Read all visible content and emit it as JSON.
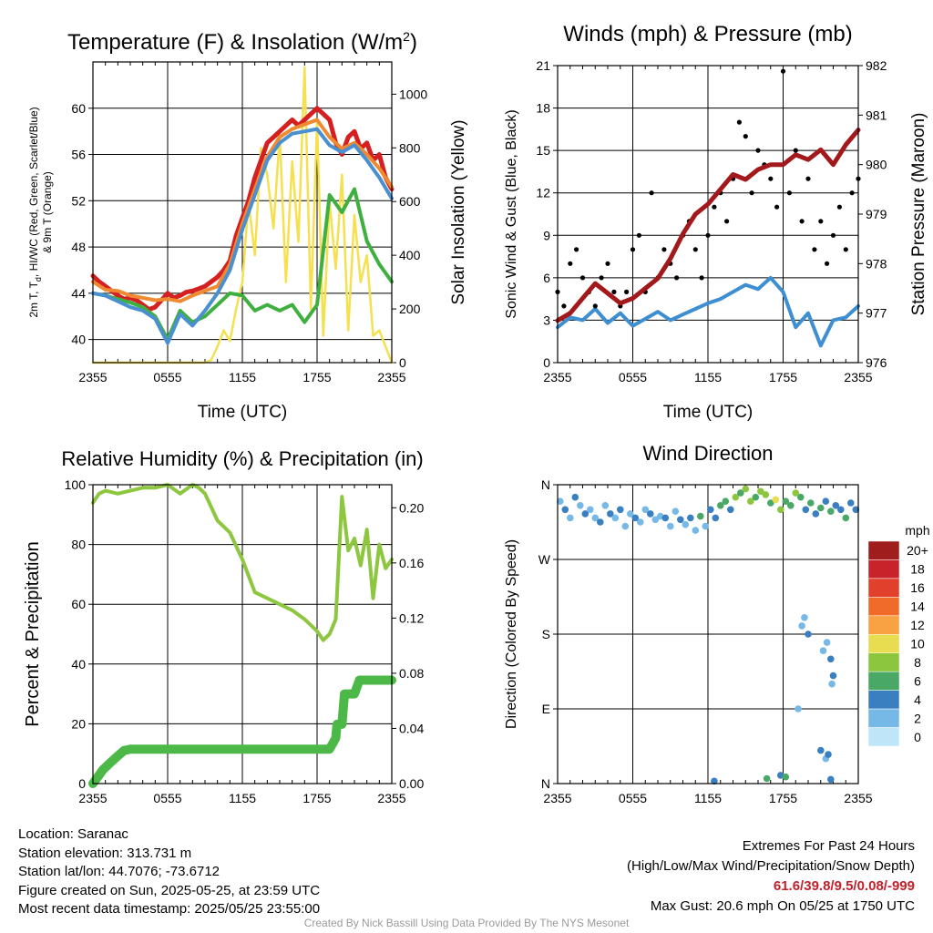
{
  "chart_data": [
    {
      "type": "line",
      "title": "Temperature (F) & Insolation (W/m",
      "title_sup": "2",
      "title_close": ")",
      "xlabel": "Time (UTC)",
      "ylabel_lines": [
        "2m T, T",
        "d",
        ", HI/WC (Red, Green, Scarlet/Blue)",
        "& 9m T (Orange)"
      ],
      "ylabel_right": "Solar Insolation (Yellow)",
      "x_ticks": [
        "2355",
        "0555",
        "1155",
        "1755",
        "2355"
      ],
      "ylim": [
        38,
        64
      ],
      "y_ticks": [
        "40",
        "44",
        "48",
        "52",
        "56",
        "60"
      ],
      "y2lim": [
        0,
        1120
      ],
      "y2_ticks": [
        "0",
        "200",
        "400",
        "600",
        "800",
        "1000"
      ],
      "series": [
        {
          "name": "2m T",
          "color": "#d42020",
          "x": [
            0,
            0.5,
            1,
            1.5,
            2,
            2.5,
            3,
            3.5,
            4,
            4.5,
            5,
            5.5,
            6,
            6.5,
            7,
            7.5,
            8,
            8.5,
            9,
            9.5,
            10,
            10.5,
            11,
            11.5,
            12,
            12.5,
            13,
            13.5,
            14,
            14.5,
            15,
            15.5,
            16,
            16.5,
            17,
            17.5,
            18,
            18.5,
            19,
            19.5,
            20,
            20.5,
            21,
            21.5,
            22,
            22.5,
            23,
            23.5,
            24
          ],
          "y": [
            45.5,
            45.0,
            44.6,
            44.2,
            43.8,
            43.5,
            43.6,
            43.4,
            43.0,
            42.6,
            42.8,
            43.4,
            44.0,
            43.6,
            43.8,
            44.1,
            44.2,
            44.4,
            44.6,
            45.0,
            45.4,
            46.0,
            46.8,
            49.0,
            50.5,
            52.0,
            54.0,
            55.5,
            57.0,
            57.5,
            58.0,
            58.5,
            59.0,
            58.5,
            59.0,
            59.5,
            60.0,
            59.5,
            59.0,
            57.0,
            56.0,
            57.5,
            58.0,
            56.5,
            57.0,
            55.5,
            56.0,
            54.0,
            53.0
          ]
        },
        {
          "name": "9m T",
          "color": "#f08a30",
          "x": [
            0,
            1,
            2,
            3,
            4,
            5,
            6,
            7,
            8,
            9,
            10,
            11,
            12,
            13,
            14,
            15,
            16,
            17,
            18,
            19,
            20,
            21,
            22,
            23,
            24
          ],
          "y": [
            45.0,
            44.3,
            44.2,
            43.8,
            43.6,
            43.4,
            43.5,
            43.3,
            43.8,
            44.2,
            44.6,
            46.5,
            50.0,
            53.0,
            55.8,
            57.5,
            58.2,
            58.6,
            59.0,
            57.5,
            56.5,
            57.0,
            56.0,
            54.8,
            53.2
          ]
        },
        {
          "name": "T_d",
          "color": "#3fb03f",
          "x": [
            0,
            1,
            2,
            3,
            4,
            5,
            6,
            7,
            8,
            9,
            10,
            11,
            12,
            13,
            14,
            15,
            16,
            17,
            18,
            19,
            20,
            21,
            22,
            23,
            24
          ],
          "y": [
            44.0,
            43.8,
            43.5,
            43.2,
            42.8,
            42.0,
            40.0,
            42.5,
            41.5,
            42.0,
            43.0,
            44.0,
            43.8,
            42.5,
            43.0,
            42.5,
            43.0,
            41.5,
            43.0,
            52.5,
            51.0,
            53.0,
            48.5,
            46.5,
            45.0
          ]
        },
        {
          "name": "HI/WC",
          "color": "#4a90d0",
          "x": [
            0,
            1,
            2,
            3,
            4,
            5,
            6,
            7,
            8,
            9,
            10,
            11,
            12,
            13,
            14,
            15,
            16,
            17,
            18,
            19,
            20,
            21,
            22,
            23,
            24
          ],
          "y": [
            44.0,
            43.8,
            43.3,
            42.8,
            42.5,
            41.8,
            39.7,
            42.2,
            41.2,
            42.5,
            44.0,
            46.0,
            49.5,
            52.5,
            55.5,
            57.0,
            57.8,
            58.0,
            58.2,
            56.8,
            56.2,
            56.8,
            55.5,
            54.0,
            52.2
          ]
        }
      ],
      "insolation": {
        "name": "Solar Insolation",
        "color": "#f5e050",
        "x": [
          0,
          1,
          2,
          3,
          4,
          5,
          6,
          7,
          8,
          9,
          9.5,
          10,
          10.5,
          11,
          11.5,
          12,
          12.5,
          13,
          13.5,
          14,
          14.5,
          15,
          15.5,
          16,
          16.5,
          17,
          17.5,
          18,
          18.5,
          19,
          19.5,
          20,
          20.5,
          21,
          21.5,
          22,
          22.5,
          23,
          23.5,
          24
        ],
        "y": [
          0,
          0,
          0,
          0,
          0,
          0,
          0,
          0,
          0,
          0,
          10,
          60,
          120,
          80,
          200,
          300,
          600,
          400,
          800,
          700,
          500,
          850,
          300,
          750,
          450,
          1100,
          200,
          900,
          100,
          600,
          350,
          700,
          120,
          550,
          300,
          400,
          100,
          120,
          60,
          0
        ]
      }
    },
    {
      "type": "line",
      "title": "Winds (mph) & Pressure (mb)",
      "xlabel": "Time (UTC)",
      "ylabel": "Sonic Wind & Gust (Blue, Black)",
      "ylabel_right": "Station Pressure (Maroon)",
      "x_ticks": [
        "2355",
        "0555",
        "1155",
        "1755",
        "2355"
      ],
      "ylim": [
        0,
        21
      ],
      "y_ticks": [
        "0",
        "3",
        "6",
        "9",
        "12",
        "15",
        "18",
        "21"
      ],
      "y2lim": [
        976,
        982
      ],
      "y2_ticks": [
        "976",
        "977",
        "978",
        "979",
        "980",
        "981",
        "982"
      ],
      "series": [
        {
          "name": "Sonic Wind",
          "color": "#3e8fd2",
          "x": [
            0,
            1,
            2,
            3,
            4,
            5,
            6,
            7,
            8,
            9,
            10,
            11,
            12,
            13,
            14,
            15,
            16,
            17,
            18,
            19,
            20,
            21,
            22,
            23,
            24
          ],
          "y": [
            2.5,
            3.2,
            3.0,
            3.8,
            2.8,
            3.5,
            2.6,
            3.1,
            3.6,
            3.0,
            3.4,
            3.8,
            4.2,
            4.5,
            5.0,
            5.5,
            5.2,
            6.0,
            5.0,
            2.5,
            3.5,
            1.2,
            3.0,
            3.2,
            4.0
          ]
        },
        {
          "name": "Gust",
          "color": "#000000",
          "x": [
            0,
            0.5,
            1,
            1.5,
            2,
            2.5,
            3,
            3.5,
            4,
            4.5,
            5,
            5.5,
            6,
            6.5,
            7,
            7.5,
            8,
            8.5,
            9,
            9.5,
            10,
            10.5,
            11,
            11.5,
            12,
            12.5,
            13,
            13.5,
            14,
            14.5,
            15,
            15.5,
            16,
            16.5,
            17,
            17.5,
            18,
            18.5,
            19,
            19.5,
            20,
            20.5,
            21,
            21.5,
            22,
            22.5,
            23,
            23.5,
            24
          ],
          "y": [
            5,
            4,
            7,
            8,
            6,
            5,
            4,
            6,
            7,
            5,
            4,
            5,
            8,
            9,
            5,
            12,
            6,
            8,
            7,
            6,
            9,
            10,
            8,
            6,
            9,
            11,
            12,
            10,
            13,
            17,
            16,
            12,
            15,
            14,
            13,
            11,
            20.6,
            12,
            15,
            10,
            13,
            8,
            10,
            7,
            9,
            11,
            8,
            12,
            13
          ]
        },
        {
          "name": "Station Pressure",
          "color": "#a3181b",
          "x": [
            0,
            1,
            2,
            3,
            4,
            5,
            6,
            7,
            8,
            9,
            10,
            11,
            12,
            13,
            14,
            15,
            16,
            17,
            18,
            19,
            20,
            21,
            22,
            23,
            24
          ],
          "y": [
            976.85,
            977.0,
            977.3,
            977.6,
            977.4,
            977.2,
            977.3,
            977.5,
            977.7,
            978.1,
            978.6,
            979.0,
            979.2,
            979.5,
            979.8,
            979.7,
            979.9,
            980.0,
            980.0,
            980.2,
            980.1,
            980.3,
            980.0,
            980.4,
            980.7
          ]
        }
      ]
    },
    {
      "type": "line",
      "title": "Relative Humidity (%) & Precipitation (in)",
      "ylabel": "Percent & Precipitation",
      "x_ticks": [
        "2355",
        "0555",
        "1155",
        "1755",
        "2355"
      ],
      "ylim": [
        0,
        100
      ],
      "y_ticks": [
        "0",
        "20",
        "40",
        "60",
        "80",
        "100"
      ],
      "y2lim": [
        0,
        0.2167
      ],
      "y2_ticks": [
        "0.00",
        "0.04",
        "0.08",
        "0.12",
        "0.16",
        "0.20"
      ],
      "series": [
        {
          "name": "Relative Humidity",
          "color": "#8dc63f",
          "x": [
            0,
            0.5,
            1,
            2,
            3,
            4,
            5,
            6,
            7,
            8,
            8.5,
            9,
            10,
            10.5,
            11,
            12,
            13,
            14,
            15,
            16,
            17,
            18,
            18.5,
            19,
            19.5,
            20,
            20.5,
            21,
            21.5,
            22,
            22.5,
            23,
            23.5,
            24
          ],
          "y": [
            94,
            97,
            98,
            97,
            98,
            99,
            99,
            100,
            97,
            100,
            99,
            97,
            88,
            86,
            84,
            75,
            64,
            62,
            60,
            58,
            55,
            51,
            48,
            50,
            55,
            96,
            78,
            82,
            73,
            85,
            62,
            80,
            72,
            75
          ]
        },
        {
          "name": "Precipitation",
          "color": "#4cb848",
          "x": [
            0,
            0.4,
            0.8,
            1.5,
            2,
            2.5,
            3,
            10,
            19,
            19.5,
            19.6,
            20,
            20.2,
            21,
            21.4,
            22,
            24
          ],
          "y": [
            0,
            0.005,
            0.01,
            0.016,
            0.02,
            0.024,
            0.025,
            0.025,
            0.025,
            0.033,
            0.043,
            0.043,
            0.065,
            0.065,
            0.075,
            0.075,
            0.075
          ]
        }
      ]
    },
    {
      "type": "scatter",
      "title": "Wind Direction",
      "ylabel": "Direction (Colored By Speed)",
      "x_ticks": [
        "2355",
        "0555",
        "1155",
        "1755",
        "2355"
      ],
      "ylim": [
        0,
        360
      ],
      "y_ticks": [
        "N",
        "E",
        "S",
        "W",
        "N"
      ],
      "colorbar": {
        "title": "mph",
        "labels": [
          "20+",
          "18",
          "16",
          "14",
          "12",
          "10",
          "8",
          "6",
          "4",
          "2",
          "0"
        ],
        "colors": [
          "#9f1d1d",
          "#c8232a",
          "#e0402c",
          "#f06a2a",
          "#f8a244",
          "#e8dc50",
          "#8cc63f",
          "#4aa866",
          "#3a80c0",
          "#76b8e6",
          "#bfe6f8"
        ]
      },
      "points": {
        "x": [
          0.2,
          0.6,
          1.0,
          1.4,
          1.8,
          2.2,
          2.6,
          3.0,
          3.4,
          3.8,
          4.2,
          4.6,
          5.0,
          5.4,
          5.8,
          6.2,
          6.6,
          7.0,
          7.4,
          7.8,
          8.2,
          8.6,
          9.0,
          9.4,
          9.8,
          10.2,
          10.6,
          11.0,
          11.4,
          11.8,
          12.2,
          12.6,
          13.0,
          13.4,
          13.8,
          14.2,
          14.6,
          15.0,
          15.4,
          15.8,
          16.2,
          16.6,
          17.0,
          17.4,
          17.8,
          18.2,
          18.6,
          19.0,
          19.4,
          19.8,
          20.2,
          20.6,
          21.0,
          21.4,
          21.8,
          22.2,
          22.6,
          23.0,
          23.4,
          23.8,
          19.5,
          19.7,
          20.0,
          21.2,
          21.5,
          21.8,
          21.9,
          22.0,
          19.2,
          21.0,
          21.4,
          21.6,
          17.8,
          18.2,
          16.7,
          21.8,
          12.5
        ],
        "y": [
          340,
          330,
          320,
          345,
          335,
          325,
          330,
          320,
          315,
          335,
          325,
          320,
          330,
          310,
          325,
          320,
          315,
          330,
          325,
          318,
          322,
          320,
          310,
          328,
          318,
          312,
          320,
          305,
          322,
          310,
          330,
          320,
          335,
          340,
          330,
          345,
          350,
          355,
          340,
          345,
          352,
          348,
          338,
          342,
          330,
          340,
          335,
          350,
          345,
          330,
          338,
          325,
          332,
          340,
          328,
          335,
          330,
          320,
          338,
          330,
          190,
          200,
          180,
          160,
          170,
          150,
          120,
          130,
          90,
          40,
          30,
          35,
          10,
          8,
          6,
          5,
          3
        ],
        "speed": [
          2,
          3,
          2,
          4,
          2,
          3,
          2,
          2,
          3,
          2,
          4,
          2,
          3,
          2,
          2,
          3,
          2,
          2,
          4,
          2,
          2,
          3,
          2,
          2,
          4,
          2,
          3,
          2,
          5,
          2,
          3,
          4,
          5,
          6,
          4,
          7,
          6,
          8,
          7,
          6,
          8,
          7,
          6,
          9,
          7,
          6,
          5,
          7,
          6,
          4,
          5,
          3,
          6,
          4,
          5,
          3,
          4,
          5,
          4,
          3,
          2,
          2,
          3,
          2,
          2,
          3,
          2,
          4,
          1,
          3,
          2,
          4,
          4,
          6,
          5,
          3,
          4
        ]
      }
    }
  ],
  "footer": {
    "location": "Location: Saranac",
    "elevation": "Station elevation: 313.731 m",
    "latlon": "Station lat/lon: 44.7076; -73.6712",
    "created": "Figure created on Sun, 2025-05-25, at 23:59 UTC",
    "recent": "Most recent data timestamp: 2025/05/25 23:55:00",
    "extremes_title": "Extremes For Past 24 Hours",
    "extremes_subtitle": "(High/Low/Max Wind/Precipitation/Snow Depth)",
    "extremes_values": "61.6/39.8/9.5/0.08/-999",
    "max_gust": "Max Gust: 20.6 mph On 05/25 at 1750 UTC",
    "credit": "Created By Nick Bassill Using Data Provided By The NYS Mesonet"
  }
}
